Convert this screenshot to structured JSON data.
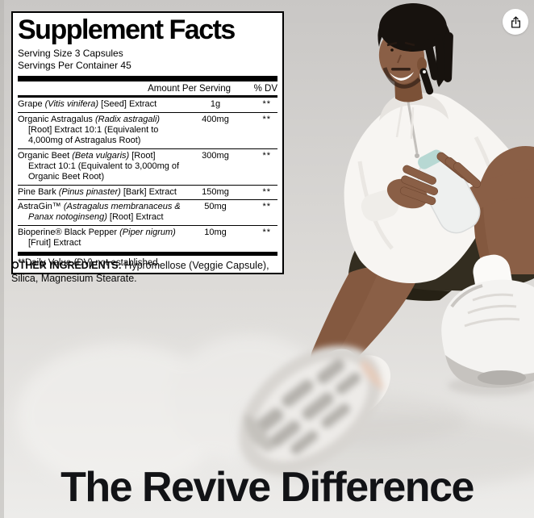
{
  "label": {
    "title": "Supplement Facts",
    "serving_size": "Serving Size 3 Capsules",
    "servings_per_container": "Servings Per Container 45",
    "columns": {
      "amount": "Amount Per Serving",
      "dv": "% DV"
    },
    "rows": [
      {
        "name_parts": [
          {
            "text": "Grape ",
            "italic": false
          },
          {
            "text": "(Vitis vinifera)",
            "italic": true
          },
          {
            "text": " [Seed] Extract",
            "italic": false
          }
        ],
        "amount": "1g",
        "dv": "**"
      },
      {
        "name_parts": [
          {
            "text": "Organic Astragalus ",
            "italic": false
          },
          {
            "text": "(Radix astragali)",
            "italic": true
          },
          {
            "text": " [Root] Extract 10:1 (Equivalent to 4,000mg of Astragalus Root)",
            "italic": false
          }
        ],
        "amount": "400mg",
        "dv": "**"
      },
      {
        "name_parts": [
          {
            "text": "Organic Beet ",
            "italic": false
          },
          {
            "text": "(Beta vulgaris)",
            "italic": true
          },
          {
            "text": " [Root] Extract 10:1 (Equivalent to 3,000mg of Organic Beet Root)",
            "italic": false
          }
        ],
        "amount": "300mg",
        "dv": "**"
      },
      {
        "name_parts": [
          {
            "text": "Pine Bark ",
            "italic": false
          },
          {
            "text": "(Pinus pinaster)",
            "italic": true
          },
          {
            "text": " [Bark] Extract",
            "italic": false
          }
        ],
        "amount": "150mg",
        "dv": "**"
      },
      {
        "name_parts": [
          {
            "text": "AstraGin™ ",
            "italic": false
          },
          {
            "text": "(Astragalus membranaceus & Panax notoginseng)",
            "italic": true
          },
          {
            "text": " [Root] Extract",
            "italic": false
          }
        ],
        "amount": "50mg",
        "dv": "**"
      },
      {
        "name_parts": [
          {
            "text": "Bioperine® Black Pepper ",
            "italic": false
          },
          {
            "text": "(Piper nigrum)",
            "italic": true
          },
          {
            "text": " [Fruit] Extract",
            "italic": false
          }
        ],
        "amount": "10mg",
        "dv": "**"
      }
    ],
    "footnote": "**Daily Value (DV) not established."
  },
  "other_ingredients": {
    "label": "OTHER INGREDIENTS:",
    "text": " Hypromellose (Veggie Capsule), Silica, Magnesium Stearate."
  },
  "headline": "The Revive Difference",
  "share": {
    "icon": "share-icon"
  },
  "photo": {
    "alt": "Smiling man with dreadlocks in a white zip hoodie and dark olive shorts sitting on a light gray floor holding a white water bottle, white socks and sneakers"
  },
  "colors": {
    "headline_text": "#121316",
    "background_top": "#c9c7c5",
    "background_bottom": "#edecea",
    "hoodie": "#f7f5f2",
    "skin": "#8a5f46",
    "hair": "#17120e",
    "shorts": "#332d20",
    "bottle": "#eef0ef",
    "bottle_cap": "#b7d8d3",
    "sneaker": "#f4f3f1"
  }
}
